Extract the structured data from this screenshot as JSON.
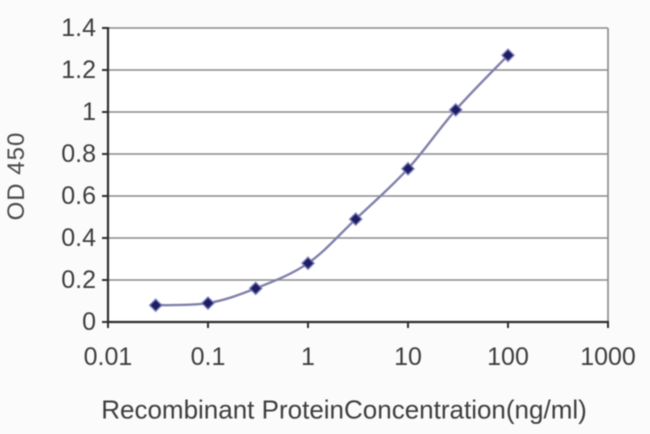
{
  "chart_data": {
    "type": "line",
    "title": "",
    "xlabel": "Recombinant ProteinConcentration(ng/ml)",
    "ylabel": "OD 450",
    "x_scale": "log",
    "xlim": [
      0.01,
      1000
    ],
    "ylim": [
      0,
      1.4
    ],
    "x_ticks": [
      "0.01",
      "0.1",
      "1",
      "10",
      "100",
      "1000"
    ],
    "y_ticks": [
      "0",
      "0.2",
      "0.4",
      "0.6",
      "0.8",
      "1",
      "1.2",
      "1.4"
    ],
    "x": [
      0.03,
      0.1,
      0.3,
      1,
      3,
      10,
      30,
      100
    ],
    "series": [
      {
        "name": "OD 450",
        "values": [
          0.08,
          0.09,
          0.16,
          0.28,
          0.49,
          0.73,
          1.01,
          1.27
        ]
      }
    ],
    "grid": "horizontal",
    "legend": "none",
    "marker": "diamond",
    "colors": {
      "line": "#8282ac",
      "marker_fill": "#1d1d62",
      "marker_halo": "#7b7bc0",
      "grid": "#8a8a8a",
      "axis": "#2f2f2f",
      "text": "#3e3e3e",
      "plot_background": "#ffffff",
      "page_background": "#fbfbfb"
    }
  }
}
